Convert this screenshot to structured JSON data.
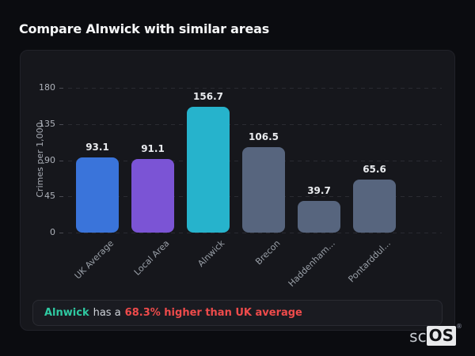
{
  "page": {
    "title": "Compare Alnwick with similar areas"
  },
  "chart_data": {
    "type": "bar",
    "categories": [
      "UK Average",
      "Local Area",
      "Alnwick",
      "Brecon",
      "Haddenham...",
      "Pontarddul..."
    ],
    "values": [
      93.1,
      91.1,
      156.7,
      106.5,
      39.7,
      65.6
    ],
    "bar_colors": [
      "#3a74da",
      "#7b54d5",
      "#26b3cc",
      "#57657e",
      "#57657e",
      "#57657e"
    ],
    "title": "",
    "xlabel": "",
    "ylabel": "Crimes per 1,000",
    "yticks": [
      0,
      45,
      90,
      135,
      180
    ],
    "ylim": [
      0,
      180
    ],
    "grid": "dashed-horizontal",
    "legend": "none",
    "colors": {
      "background": "#16171c",
      "page_background": "#0b0c10",
      "gridline": "#2a2b32",
      "tick_text": "#aeb2ba",
      "value_label_text": "#e9ebee"
    }
  },
  "note": {
    "area": "Alnwick",
    "middle": "has a",
    "highlight": "68.3% higher than UK average",
    "area_color": "#2fc9a2",
    "highlight_color": "#ee4b4b"
  },
  "logo": {
    "prefix": "sc",
    "suffix": "OS",
    "registered": "®"
  }
}
